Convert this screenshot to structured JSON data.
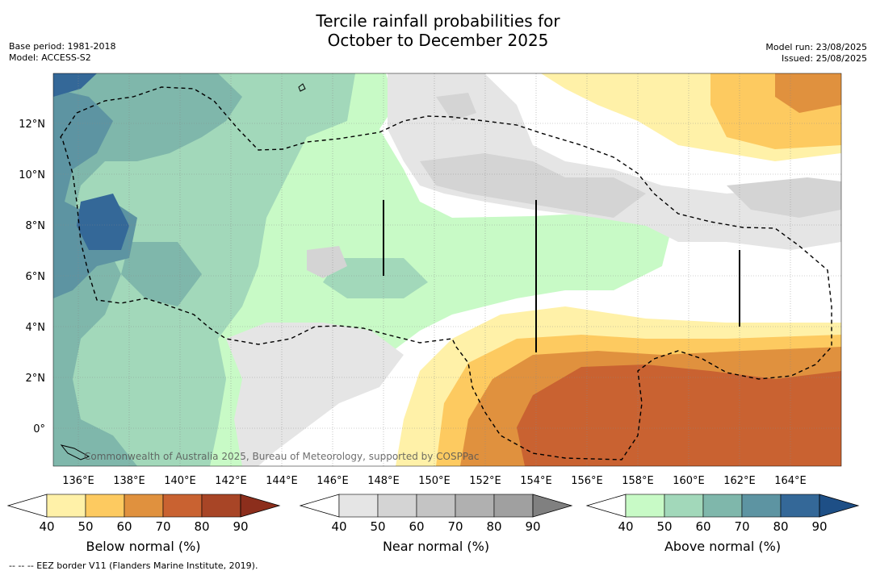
{
  "title_line1": "Tercile rainfall probabilities for",
  "title_line2": "October to December 2025",
  "base_period": "Base period: 1981-2018",
  "model": "Model: ACCESS-S2",
  "model_run": "Model run: 23/08/2025",
  "issued": "Issued: 25/08/2025",
  "copyright": "Commonwealth of Australia 2025, Bureau of Meteorology, supported by COSPPac",
  "footnote": "--  --  -- EEZ border V11 (Flanders Marine Institute, 2019).",
  "lon_ticks": [
    "136°E",
    "138°E",
    "140°E",
    "142°E",
    "144°E",
    "146°E",
    "148°E",
    "150°E",
    "152°E",
    "154°E",
    "156°E",
    "158°E",
    "160°E",
    "162°E",
    "164°E"
  ],
  "lat_ticks": [
    "12°N",
    "10°N",
    "8°N",
    "6°N",
    "4°N",
    "2°N",
    "0°"
  ],
  "colorbars": [
    {
      "label": "Below normal (%)",
      "ticks": [
        "40",
        "50",
        "60",
        "70",
        "80",
        "90"
      ],
      "colors": [
        "#fff1a8",
        "#fdca60",
        "#e0913e",
        "#c96231",
        "#a84526"
      ],
      "arrow": "#8c2e1c"
    },
    {
      "label": "Near normal (%)",
      "ticks": [
        "40",
        "50",
        "60",
        "70",
        "80",
        "90"
      ],
      "colors": [
        "#e5e5e5",
        "#d4d4d4",
        "#c4c4c4",
        "#b0b0b0",
        "#a0a0a0"
      ],
      "arrow": "#808080"
    },
    {
      "label": "Above normal (%)",
      "ticks": [
        "40",
        "50",
        "60",
        "70",
        "80",
        "90"
      ],
      "colors": [
        "#c8fac6",
        "#a2d8ba",
        "#7fb7ab",
        "#5d94a2",
        "#346898"
      ],
      "arrow": "#1e4f86"
    }
  ]
}
